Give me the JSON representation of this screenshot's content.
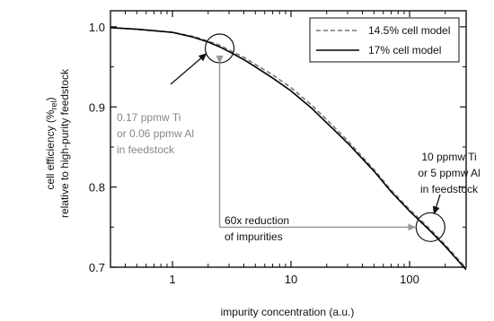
{
  "chart_data": {
    "type": "line",
    "xscale": "log",
    "xlim": [
      0.3,
      300
    ],
    "ylim": [
      0.7,
      1.02
    ],
    "xlabel": "impurity concentration (a.u.)",
    "ylabel_line1": "cell efficiency (%",
    "ylabel_sub": "rel",
    "ylabel_line1_end": ")",
    "ylabel_line2": "relative to high-purity feedstock",
    "x_ticks": [
      {
        "value": 1,
        "label": "1"
      },
      {
        "value": 10,
        "label": "10"
      },
      {
        "value": 100,
        "label": "100"
      }
    ],
    "y_ticks": [
      {
        "value": 0.7,
        "label": "0.7"
      },
      {
        "value": 0.8,
        "label": "0.8"
      },
      {
        "value": 0.9,
        "label": "0.9"
      },
      {
        "value": 1.0,
        "label": "1.0"
      }
    ],
    "grid": false,
    "legend_position": "top-right",
    "series": [
      {
        "name": "14.5% cell model",
        "style": "dashed",
        "color": "#777777",
        "x": [
          0.3,
          0.5,
          1,
          1.5,
          2,
          2.5,
          3,
          4,
          5,
          7,
          10,
          15,
          20,
          30,
          50,
          70,
          100,
          150,
          200,
          250,
          300
        ],
        "y": [
          0.999,
          0.997,
          0.993,
          0.988,
          0.982,
          0.977,
          0.971,
          0.962,
          0.953,
          0.94,
          0.924,
          0.902,
          0.884,
          0.858,
          0.822,
          0.796,
          0.772,
          0.747,
          0.728,
          0.712,
          0.699
        ]
      },
      {
        "name": "17% cell model",
        "style": "solid",
        "color": "#000000",
        "x": [
          0.3,
          0.5,
          1,
          1.5,
          2,
          2.5,
          3,
          4,
          5,
          7,
          10,
          15,
          20,
          30,
          50,
          70,
          100,
          150,
          200,
          250,
          300
        ],
        "y": [
          0.999,
          0.997,
          0.993,
          0.987,
          0.981,
          0.975,
          0.969,
          0.959,
          0.95,
          0.936,
          0.92,
          0.898,
          0.88,
          0.855,
          0.82,
          0.794,
          0.77,
          0.745,
          0.726,
          0.71,
          0.697
        ]
      }
    ],
    "annotations": [
      {
        "id": "low",
        "lines": [
          "0.17 ppmw Ti",
          "or 0.06 ppmw Al",
          "in feedstock"
        ],
        "color": "#888888",
        "circle_x": 2.5,
        "circle_y": 0.973
      },
      {
        "id": "high",
        "lines": [
          "10 ppmw Ti",
          "or 5 ppmw Al",
          "in feedstock"
        ],
        "color": "#111111",
        "circle_x": 150,
        "circle_y": 0.75
      },
      {
        "id": "reduction",
        "lines": [
          "60x reduction",
          "of impurities"
        ],
        "color": "#111111"
      }
    ]
  },
  "colors": {
    "axis": "#111111",
    "arrow": "#999999",
    "circle": "#111111"
  }
}
